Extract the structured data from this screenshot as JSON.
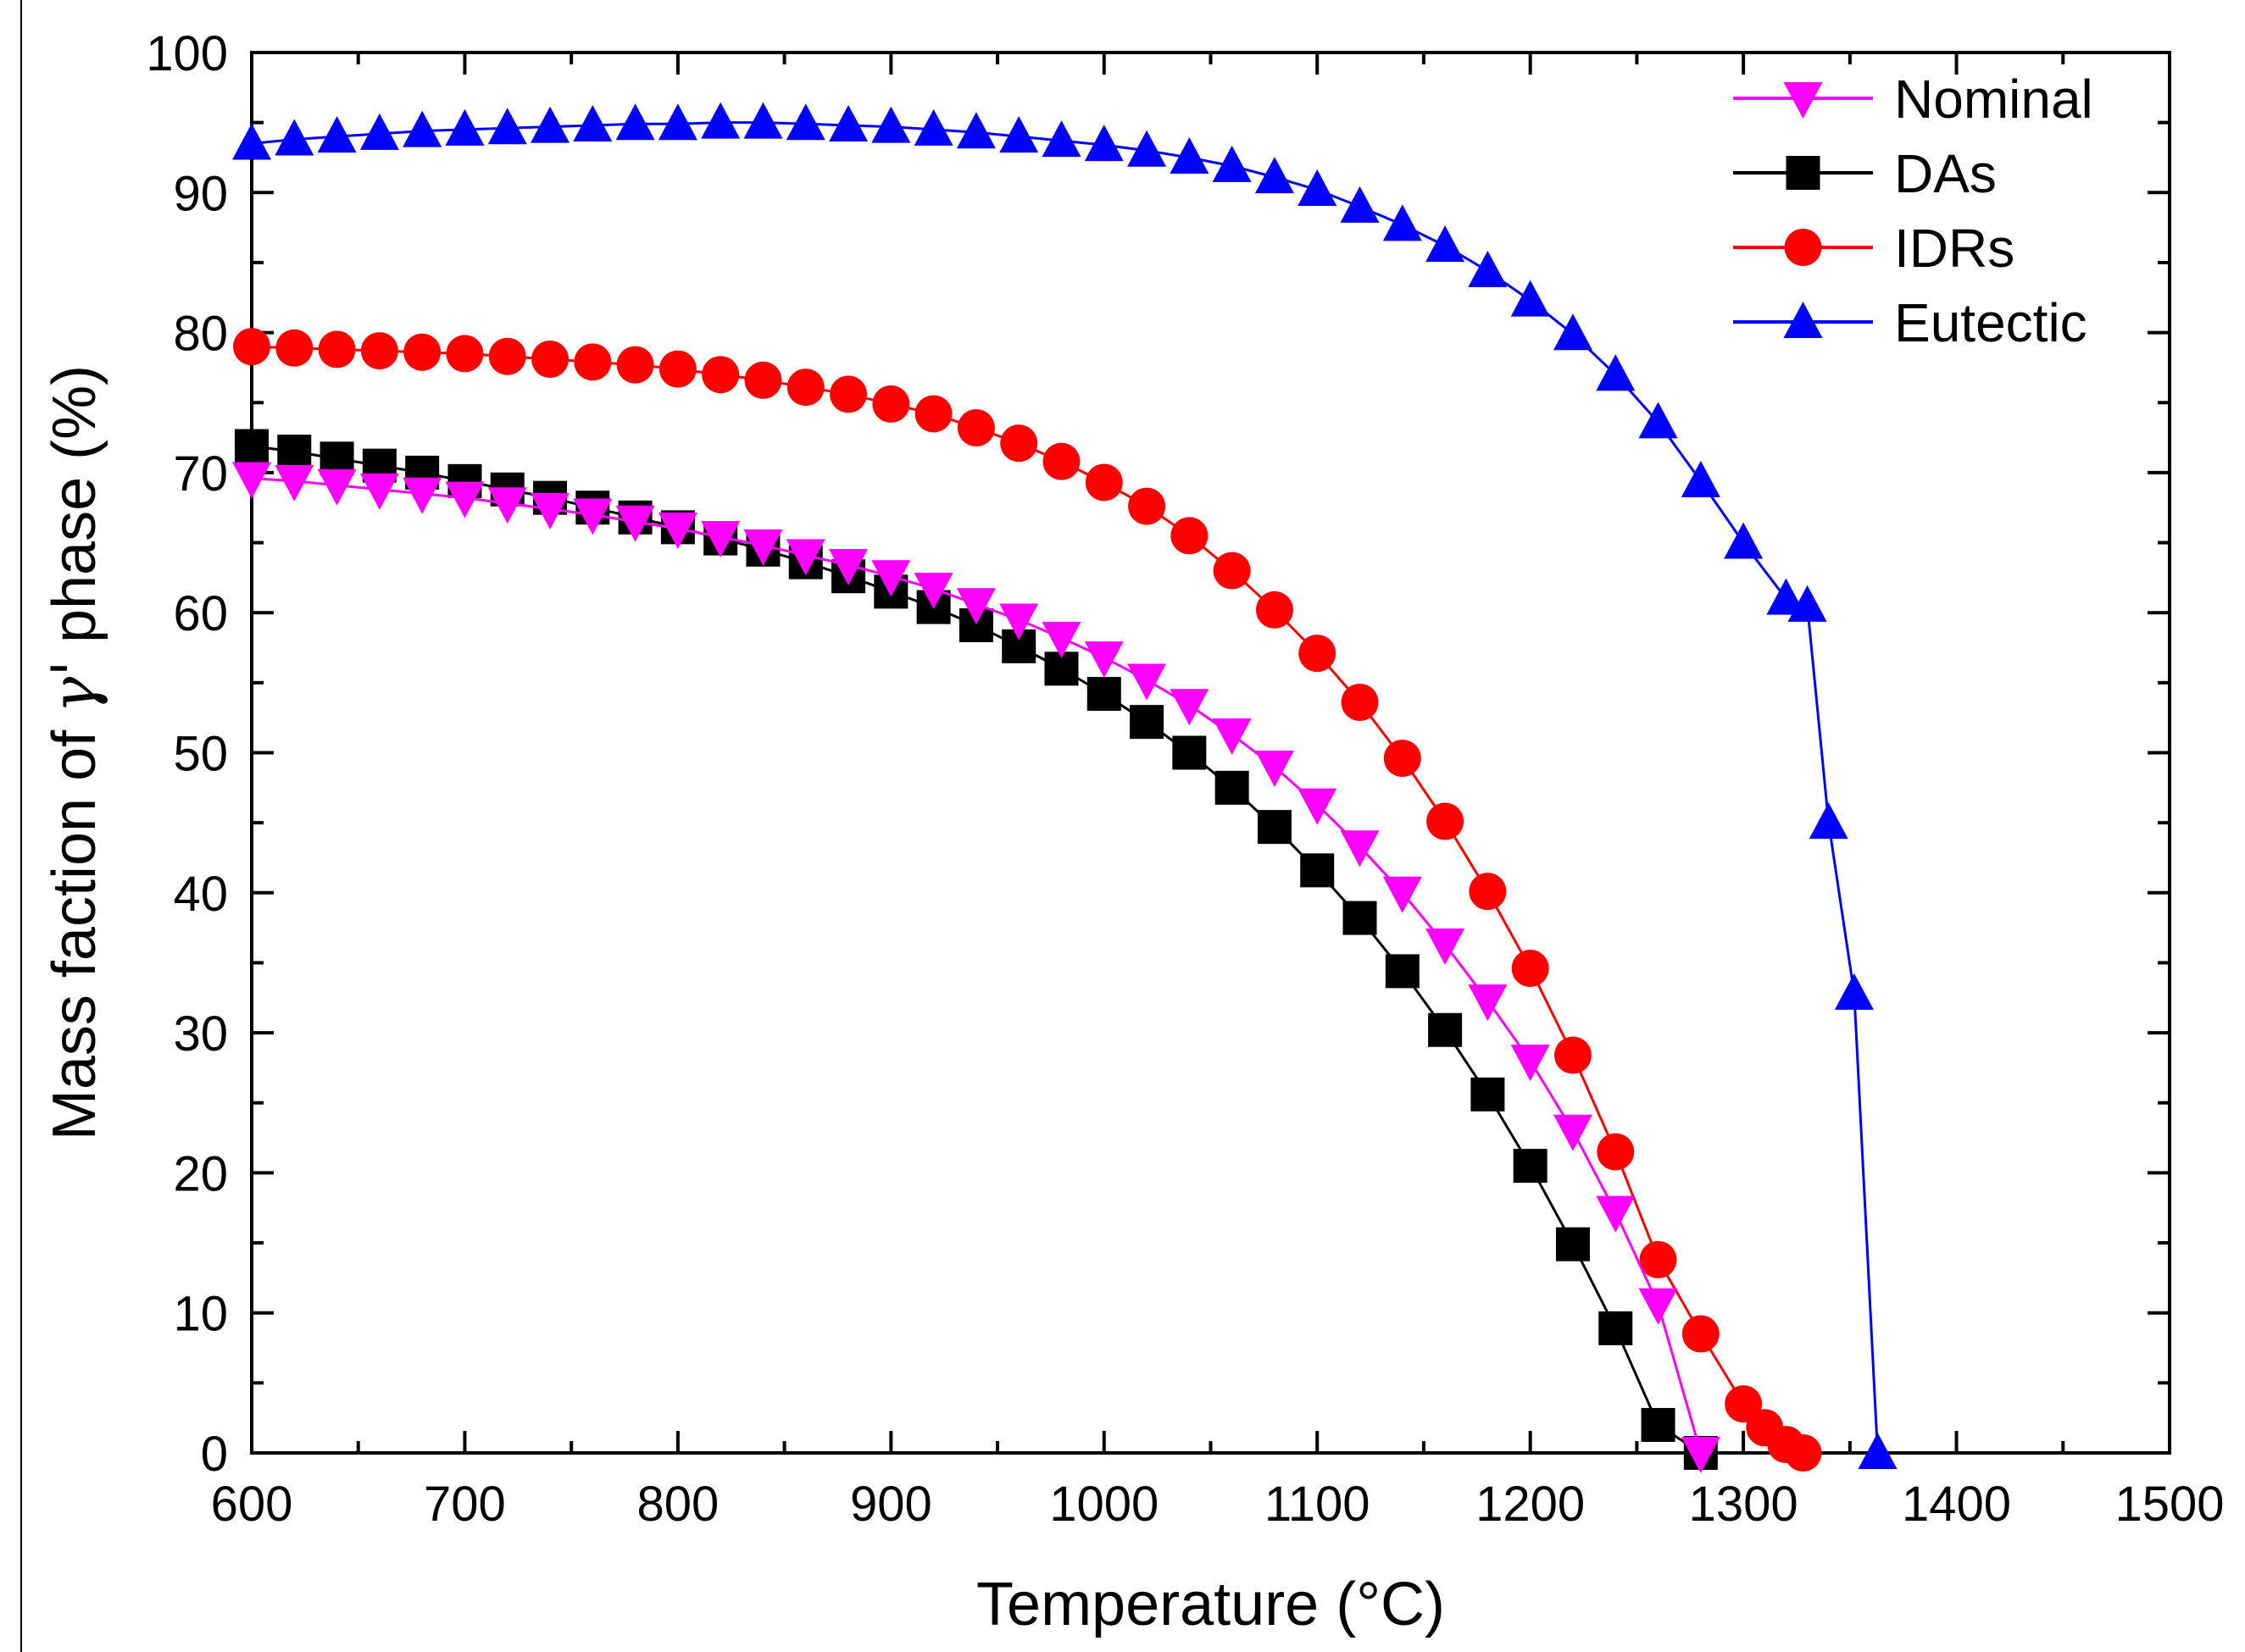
{
  "chart_data": {
    "type": "line",
    "title": "",
    "xlabel": "Temperature (°C)",
    "ylabel_prefix": "Mass faction of ",
    "ylabel_symbol": "γ'",
    "ylabel_suffix": " phase (%)",
    "xlim": [
      600,
      1500
    ],
    "ylim": [
      0,
      100
    ],
    "x_ticks": [
      600,
      700,
      800,
      900,
      1000,
      1100,
      1200,
      1300,
      1400,
      1500
    ],
    "y_ticks": [
      0,
      10,
      20,
      30,
      40,
      50,
      60,
      70,
      80,
      90,
      100
    ],
    "x_tick_labels": [
      "600",
      "700",
      "800",
      "900",
      "1000",
      "1100",
      "1200",
      "1300",
      "1400",
      "1500"
    ],
    "y_tick_labels": [
      "0",
      "10",
      "20",
      "30",
      "40",
      "50",
      "60",
      "70",
      "80",
      "90",
      "100"
    ],
    "grid": false,
    "legend_position": "top-right",
    "series": [
      {
        "name": "Nominal",
        "color": "#ff00ff",
        "marker": "triangle-down",
        "x": [
          600,
          620,
          640,
          660,
          680,
          700,
          720,
          740,
          760,
          780,
          800,
          820,
          840,
          860,
          880,
          900,
          920,
          940,
          960,
          980,
          1000,
          1020,
          1040,
          1060,
          1080,
          1100,
          1120,
          1140,
          1160,
          1180,
          1200,
          1220,
          1240,
          1260,
          1280
        ],
        "y": [
          69.6,
          69.4,
          69.1,
          68.8,
          68.5,
          68.2,
          67.8,
          67.4,
          67.0,
          66.5,
          66.0,
          65.4,
          64.8,
          64.1,
          63.4,
          62.6,
          61.7,
          60.6,
          59.5,
          58.2,
          56.8,
          55.2,
          53.4,
          51.3,
          49.0,
          46.3,
          43.3,
          40.0,
          36.3,
          32.3,
          28.0,
          23.0,
          17.2,
          10.6,
          0.0
        ]
      },
      {
        "name": "DAs",
        "color": "#000000",
        "marker": "square",
        "x": [
          600,
          620,
          640,
          660,
          680,
          700,
          720,
          740,
          760,
          780,
          800,
          820,
          840,
          860,
          880,
          900,
          920,
          940,
          960,
          980,
          1000,
          1020,
          1040,
          1060,
          1080,
          1100,
          1120,
          1140,
          1160,
          1180,
          1200,
          1220,
          1240,
          1260,
          1280
        ],
        "y": [
          71.9,
          71.5,
          71.0,
          70.5,
          70.0,
          69.4,
          68.8,
          68.2,
          67.5,
          66.8,
          66.1,
          65.3,
          64.5,
          63.6,
          62.6,
          61.5,
          60.4,
          59.1,
          57.6,
          56.0,
          54.2,
          52.2,
          50.0,
          47.5,
          44.7,
          41.6,
          38.2,
          34.4,
          30.2,
          25.6,
          20.5,
          14.9,
          8.9,
          2.0,
          0.0
        ]
      },
      {
        "name": "IDRs",
        "color": "#ff0000",
        "marker": "circle",
        "x": [
          600,
          620,
          640,
          660,
          680,
          700,
          720,
          740,
          760,
          780,
          800,
          820,
          840,
          860,
          880,
          900,
          920,
          940,
          960,
          980,
          1000,
          1020,
          1040,
          1060,
          1080,
          1100,
          1120,
          1140,
          1160,
          1180,
          1200,
          1220,
          1240,
          1260,
          1280,
          1300,
          1310,
          1320,
          1328
        ],
        "y": [
          79.0,
          78.9,
          78.8,
          78.7,
          78.6,
          78.5,
          78.3,
          78.1,
          77.9,
          77.7,
          77.4,
          77.0,
          76.6,
          76.1,
          75.6,
          74.9,
          74.2,
          73.2,
          72.1,
          70.8,
          69.3,
          67.6,
          65.5,
          63.0,
          60.2,
          57.1,
          53.6,
          49.6,
          45.1,
          40.1,
          34.6,
          28.4,
          21.5,
          13.8,
          8.5,
          3.5,
          1.8,
          0.6,
          0.0
        ]
      },
      {
        "name": "Eutectic",
        "color": "#0000ff",
        "marker": "triangle-up",
        "x": [
          600,
          620,
          640,
          660,
          680,
          700,
          720,
          740,
          760,
          780,
          800,
          820,
          840,
          860,
          880,
          900,
          920,
          940,
          960,
          980,
          1000,
          1020,
          1040,
          1060,
          1080,
          1100,
          1120,
          1140,
          1160,
          1180,
          1200,
          1220,
          1240,
          1260,
          1280,
          1300,
          1320,
          1330,
          1340,
          1352,
          1363
        ],
        "y": [
          93.5,
          93.8,
          94.0,
          94.2,
          94.4,
          94.5,
          94.6,
          94.7,
          94.8,
          94.9,
          94.9,
          95.0,
          95.0,
          94.9,
          94.8,
          94.7,
          94.5,
          94.3,
          94.0,
          93.7,
          93.4,
          93.0,
          92.5,
          91.9,
          91.1,
          90.2,
          89.0,
          87.7,
          86.2,
          84.4,
          82.3,
          79.9,
          77.0,
          73.6,
          69.4,
          65.0,
          61.0,
          60.5,
          45.0,
          32.8,
          0.0
        ]
      }
    ]
  }
}
